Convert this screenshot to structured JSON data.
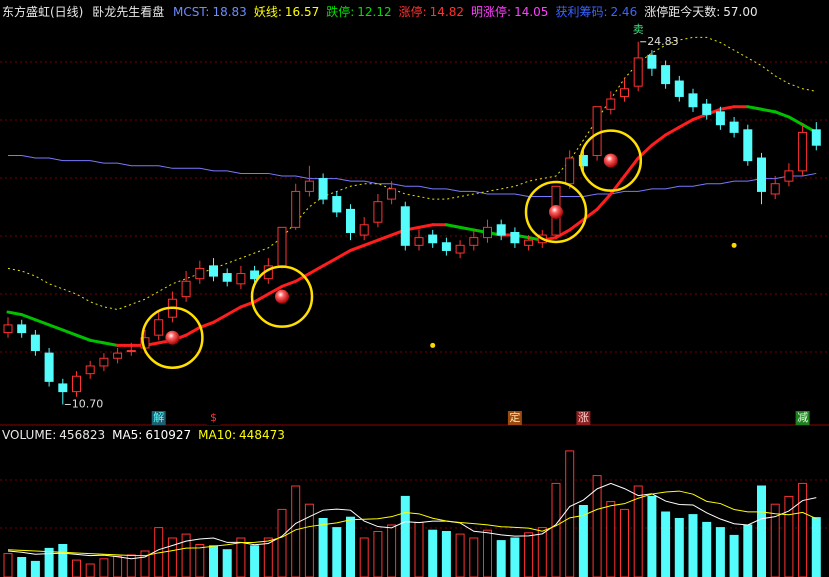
{
  "chart_data": {
    "type": "candlestick",
    "title": "东方盛虹(日线)",
    "indicator_name": "卧龙先生看盘",
    "header_items": [
      {
        "label": "MCST:",
        "value": 18.83,
        "color": "#6c8cff"
      },
      {
        "label": "妖线:",
        "value": 16.57,
        "color": "#ffff00"
      },
      {
        "label": "跌停:",
        "value": 12.12,
        "color": "#00e000"
      },
      {
        "label": "涨停:",
        "value": 14.82,
        "color": "#ff3232"
      },
      {
        "label": "明涨停:",
        "value": 14.05,
        "color": "#ff40ff"
      },
      {
        "label": "获利筹码:",
        "value": 2.46,
        "color": "#3c64ff"
      },
      {
        "label": "涨停距今天数:",
        "value": 57,
        "value_label": "57.00",
        "color": "#e8e8e8"
      }
    ],
    "ylim": [
      9.9,
      25.6
    ],
    "up_color": "#ff3232",
    "down_color": "#54fcfc",
    "open": [
      13.5,
      13.8,
      13.4,
      12.7,
      11.5,
      11.2,
      11.9,
      12.2,
      12.5,
      12.8,
      12.9,
      13.4,
      14.1,
      14.9,
      15.6,
      16.1,
      15.8,
      15.4,
      15.9,
      15.6,
      16.1,
      17.6,
      19.0,
      19.5,
      18.8,
      18.3,
      17.3,
      17.8,
      18.7,
      18.4,
      16.9,
      17.3,
      17.0,
      16.6,
      16.9,
      17.2,
      17.7,
      17.4,
      16.9,
      17.0,
      17.3,
      19.3,
      20.4,
      20.4,
      22.2,
      22.7,
      23.1,
      24.3,
      23.9,
      23.3,
      22.8,
      22.4,
      22.1,
      21.7,
      21.4,
      20.3,
      18.9,
      19.4,
      19.8,
      21.4
    ],
    "high": [
      14.1,
      14.0,
      13.6,
      12.9,
      11.7,
      12.0,
      12.4,
      12.7,
      12.9,
      13.1,
      13.6,
      14.3,
      15.1,
      15.9,
      16.3,
      16.4,
      16.0,
      16.1,
      16.1,
      16.4,
      17.6,
      19.3,
      20.0,
      19.7,
      19.0,
      18.5,
      18.0,
      18.9,
      19.4,
      18.6,
      17.5,
      17.5,
      17.2,
      17.1,
      17.5,
      17.9,
      17.9,
      17.6,
      17.3,
      17.5,
      19.2,
      20.6,
      20.7,
      22.3,
      22.9,
      23.4,
      24.83,
      24.5,
      24.1,
      23.5,
      23.0,
      22.6,
      22.3,
      21.9,
      21.6,
      20.5,
      19.6,
      20.1,
      21.6,
      21.7
    ],
    "low": [
      13.3,
      13.3,
      12.6,
      11.4,
      10.7,
      11.0,
      11.7,
      12.0,
      12.3,
      12.6,
      12.7,
      13.2,
      13.9,
      14.7,
      15.4,
      15.5,
      15.3,
      15.2,
      15.4,
      15.4,
      16.0,
      17.5,
      18.8,
      18.5,
      18.0,
      17.1,
      17.1,
      17.6,
      18.5,
      16.7,
      16.7,
      16.8,
      16.5,
      16.4,
      16.7,
      17.0,
      17.1,
      16.8,
      16.7,
      16.8,
      17.2,
      19.1,
      19.8,
      20.2,
      22.0,
      22.5,
      22.9,
      23.5,
      23.0,
      22.5,
      22.1,
      21.8,
      21.4,
      21.1,
      20.0,
      18.5,
      18.7,
      19.2,
      19.6,
      20.6
    ],
    "close": [
      13.8,
      13.5,
      12.8,
      11.6,
      11.2,
      11.8,
      12.2,
      12.5,
      12.7,
      12.8,
      13.3,
      14.0,
      14.8,
      15.5,
      16.0,
      15.7,
      15.5,
      15.8,
      15.6,
      16.1,
      17.6,
      19.0,
      19.4,
      18.7,
      18.2,
      17.4,
      17.7,
      18.6,
      19.1,
      16.9,
      17.2,
      17.0,
      16.7,
      16.9,
      17.2,
      17.6,
      17.3,
      17.0,
      17.1,
      17.3,
      19.2,
      20.3,
      20.0,
      22.3,
      22.6,
      23.0,
      24.2,
      23.8,
      23.2,
      22.7,
      22.3,
      22.0,
      21.6,
      21.3,
      20.2,
      19.0,
      19.3,
      19.8,
      21.3,
      20.8
    ],
    "trend_line": {
      "rise_color": "#ff1e1e",
      "fall_color": "#00c000",
      "values": [
        14.3,
        14.2,
        14.0,
        13.8,
        13.6,
        13.4,
        13.2,
        13.1,
        13.0,
        13.0,
        13.0,
        13.1,
        13.2,
        13.4,
        13.7,
        13.9,
        14.2,
        14.5,
        14.7,
        15.0,
        15.3,
        15.5,
        15.8,
        16.1,
        16.4,
        16.7,
        16.9,
        17.1,
        17.3,
        17.5,
        17.6,
        17.7,
        17.7,
        17.6,
        17.5,
        17.4,
        17.3,
        17.3,
        17.2,
        17.1,
        17.2,
        17.5,
        17.9,
        18.3,
        18.9,
        19.6,
        20.3,
        20.8,
        21.2,
        21.5,
        21.8,
        22.0,
        22.2,
        22.3,
        22.3,
        22.2,
        22.1,
        21.9,
        21.6,
        21.3
      ]
    },
    "cost_line": {
      "color": "#7878ff",
      "values": [
        20.4,
        20.4,
        20.3,
        20.3,
        20.2,
        20.2,
        20.2,
        20.1,
        20.1,
        20.0,
        20.0,
        20.0,
        19.9,
        19.9,
        19.9,
        19.8,
        19.8,
        19.7,
        19.7,
        19.7,
        19.6,
        19.6,
        19.5,
        19.5,
        19.5,
        19.4,
        19.4,
        19.3,
        19.3,
        19.2,
        19.2,
        19.1,
        19.1,
        19.0,
        19.0,
        18.9,
        18.9,
        18.9,
        18.8,
        18.8,
        18.8,
        18.8,
        18.8,
        18.9,
        18.9,
        19.0,
        19.0,
        19.1,
        19.1,
        19.2,
        19.2,
        19.3,
        19.3,
        19.4,
        19.4,
        19.5,
        19.5,
        19.6,
        19.6,
        19.7
      ]
    },
    "yao_line": {
      "color": "#e6e600",
      "values": [
        16.0,
        15.9,
        15.7,
        15.4,
        15.2,
        15.0,
        14.7,
        14.5,
        14.4,
        14.6,
        14.8,
        15.1,
        15.4,
        15.6,
        15.8,
        16.0,
        16.2,
        16.4,
        16.6,
        16.8,
        17.2,
        17.8,
        18.4,
        18.8,
        19.0,
        19.2,
        19.3,
        19.3,
        19.1,
        18.9,
        18.8,
        18.7,
        18.7,
        18.8,
        18.9,
        19.0,
        19.1,
        19.2,
        19.4,
        19.5,
        19.6,
        20.2,
        21.0,
        21.8,
        22.6,
        23.4,
        24.0,
        24.4,
        24.7,
        24.9,
        25.0,
        25.0,
        24.8,
        24.5,
        24.2,
        23.9,
        23.5,
        23.2,
        23.0,
        22.9
      ]
    },
    "low_point": {
      "index": 4,
      "label": "10.70"
    },
    "high_point": {
      "index": 46,
      "label": "24.83",
      "text": "卖"
    },
    "buy_markers": [
      {
        "index": 12,
        "value": 13.3
      },
      {
        "index": 20,
        "value": 14.9
      },
      {
        "index": 40,
        "value": 18.2
      },
      {
        "index": 44,
        "value": 20.2
      }
    ],
    "dots": {
      "color": "#ffd700",
      "points": [
        {
          "index": 31,
          "value": 13.0
        },
        {
          "index": 53,
          "value": 16.9
        }
      ]
    },
    "signals": [
      {
        "text": "解",
        "index": 11,
        "color": "#54fcfc",
        "bg": "#1f5f6f"
      },
      {
        "text": "$",
        "index": 15,
        "color": "#ff3232",
        "bg": "#000000"
      },
      {
        "text": "定",
        "index": 37,
        "color": "#ffe0a0",
        "bg": "#9a4a10"
      },
      {
        "text": "涨",
        "index": 42,
        "color": "#ffd0d0",
        "bg": "#8a2020"
      },
      {
        "text": "减",
        "index": 58,
        "color": "#e0ffe0",
        "bg": "#1f7f1f"
      }
    ],
    "volume_label": "VOLUME:",
    "ma5_label": "MA5:",
    "ma10_label": "MA10:",
    "ma5_color": "#ffffff",
    "ma10_color": "#ffff00",
    "vol_ylim": [
      0,
      1000000
    ],
    "volume": [
      180000,
      150000,
      120000,
      220000,
      250000,
      130000,
      100000,
      140000,
      160000,
      170000,
      200000,
      380000,
      300000,
      330000,
      250000,
      240000,
      210000,
      300000,
      240000,
      300000,
      520000,
      700000,
      560000,
      450000,
      380000,
      460000,
      300000,
      350000,
      400000,
      620000,
      420000,
      360000,
      350000,
      330000,
      300000,
      360000,
      280000,
      300000,
      340000,
      380000,
      720000,
      970000,
      550000,
      780000,
      580000,
      520000,
      700000,
      620000,
      500000,
      450000,
      480000,
      420000,
      380000,
      320000,
      400000,
      700000,
      560000,
      620000,
      720000,
      456823
    ],
    "ma5": [
      200000,
      190000,
      175000,
      180000,
      184000,
      174000,
      164000,
      168000,
      156000,
      140000,
      154000,
      210000,
      242000,
      276000,
      292000,
      300000,
      266000,
      266000,
      248000,
      258000,
      314000,
      412000,
      464000,
      514000,
      522000,
      514000,
      430000,
      388000,
      378000,
      426000,
      418000,
      430000,
      430000,
      416000,
      352000,
      340000,
      324000,
      314000,
      316000,
      332000,
      404000,
      542000,
      592000,
      678000,
      720000,
      680000,
      626000,
      640000,
      584000,
      558000,
      554000,
      494000,
      446000,
      410000,
      400000,
      448000,
      464000,
      508000,
      588000,
      610927
    ],
    "ma10": [
      210000,
      205000,
      200000,
      195000,
      190000,
      185000,
      180000,
      175000,
      170000,
      165000,
      164000,
      186000,
      203000,
      222000,
      224000,
      237000,
      248000,
      264000,
      266000,
      277000,
      306000,
      363000,
      388000,
      403000,
      416000,
      440000,
      444000,
      448000,
      464000,
      496000,
      486000,
      452000,
      431000,
      419000,
      411000,
      401000,
      387000,
      382000,
      376000,
      352000,
      394000,
      455000,
      474000,
      520000,
      548000,
      564000,
      606000,
      638000,
      654000,
      661000,
      637000,
      582000,
      565000,
      519000,
      501000,
      501000,
      487000,
      479000,
      497000,
      448473
    ]
  }
}
